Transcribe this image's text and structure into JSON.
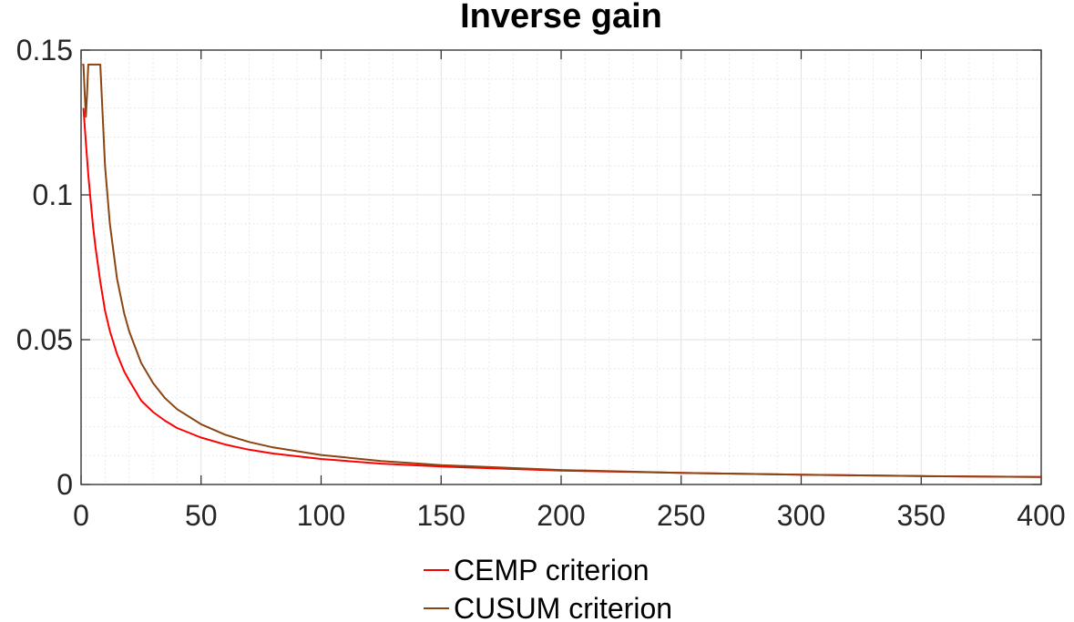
{
  "chart_data": {
    "type": "line",
    "title": "Inverse gain",
    "xlabel": "",
    "ylabel": "",
    "xlim": [
      0,
      400
    ],
    "ylim": [
      0,
      0.15
    ],
    "xticks": [
      0,
      50,
      100,
      150,
      200,
      250,
      300,
      350,
      400
    ],
    "xtick_labels": [
      "0",
      "50",
      "100",
      "150",
      "200",
      "250",
      "300",
      "350",
      "400"
    ],
    "yticks": [
      0,
      0.05,
      0.1,
      0.15
    ],
    "ytick_labels": [
      "0",
      "0.05",
      "0.1",
      "0.15"
    ],
    "grid": true,
    "minor_grid": true,
    "legend_position": "bottom-center",
    "series": [
      {
        "name": "CEMP criterion",
        "color": "#ff0000",
        "x": [
          1,
          2,
          3,
          4,
          5,
          6,
          8,
          10,
          12,
          15,
          18,
          20,
          25,
          30,
          35,
          40,
          50,
          60,
          70,
          80,
          100,
          125,
          150,
          200,
          250,
          300,
          350,
          400
        ],
        "y": [
          0.13,
          0.118,
          0.107,
          0.098,
          0.089,
          0.082,
          0.07,
          0.06,
          0.053,
          0.045,
          0.039,
          0.036,
          0.029,
          0.025,
          0.022,
          0.0195,
          0.0162,
          0.0138,
          0.012,
          0.0107,
          0.0088,
          0.0072,
          0.0062,
          0.0048,
          0.004,
          0.0034,
          0.0029,
          0.0026
        ]
      },
      {
        "name": "CUSUM criterion",
        "color": "#8b4513",
        "x": [
          0.5,
          1,
          1.5,
          2,
          2.5,
          3,
          3.5,
          4,
          4.5,
          5,
          6,
          7,
          8,
          10,
          12,
          15,
          18,
          20,
          25,
          30,
          35,
          40,
          50,
          60,
          70,
          80,
          100,
          125,
          150,
          200,
          250,
          300,
          350,
          400
        ],
        "y": [
          0.145,
          0.145,
          0.135,
          0.127,
          0.135,
          0.145,
          0.145,
          0.145,
          0.145,
          0.145,
          0.145,
          0.145,
          0.145,
          0.11,
          0.09,
          0.071,
          0.059,
          0.053,
          0.042,
          0.035,
          0.0298,
          0.026,
          0.0208,
          0.0172,
          0.0147,
          0.0128,
          0.0102,
          0.0081,
          0.0067,
          0.005,
          0.004,
          0.0034,
          0.0029,
          0.0026
        ]
      }
    ]
  }
}
